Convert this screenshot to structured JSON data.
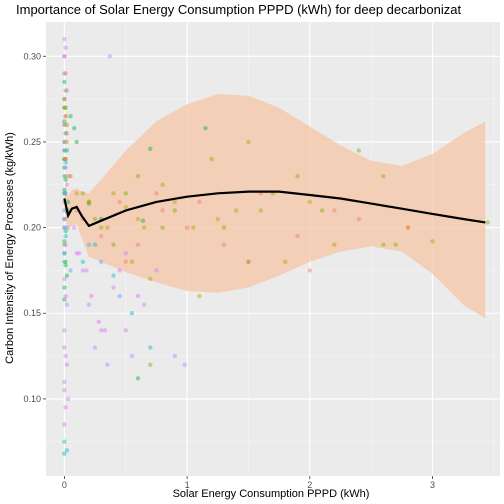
{
  "chart_data": {
    "type": "scatter",
    "title": "Importance of  Solar Energy Consumption PPPD (kWh)  for deep decarbonizat",
    "xlabel": "Solar Energy Consumption PPPD (kWh)",
    "ylabel": "Carbon Intensity of Energy Processes (kg/kWh)",
    "xlim": [
      -0.15,
      3.55
    ],
    "ylim": [
      0.055,
      0.32
    ],
    "x_ticks": [
      0,
      1,
      2,
      3
    ],
    "x_tick_labels": [
      "0",
      "1",
      "2",
      "3"
    ],
    "y_ticks": [
      0.1,
      0.15,
      0.2,
      0.25,
      0.3
    ],
    "y_tick_labels": [
      "0.10",
      "0.15",
      "0.20",
      "0.25",
      "0.30"
    ],
    "grid": true,
    "legend": "none",
    "colors": {
      "panel": "#ebebeb",
      "grid_major": "#ffffff",
      "ribbon": "#f4c6a4",
      "smooth_line": "#000000",
      "points": [
        "#f8766d",
        "#7cae00",
        "#00bfc4",
        "#c77cff",
        "#00ba38",
        "#619cff",
        "#e76bf3",
        "#b79f00"
      ]
    },
    "smooth_line": {
      "x": [
        0.0,
        0.03,
        0.06,
        0.1,
        0.14,
        0.2,
        0.3,
        0.5,
        0.75,
        1.0,
        1.25,
        1.5,
        1.75,
        2.0,
        2.25,
        2.5,
        2.75,
        3.0,
        3.25,
        3.43
      ],
      "y": [
        0.217,
        0.207,
        0.211,
        0.212,
        0.207,
        0.201,
        0.204,
        0.21,
        0.215,
        0.218,
        0.22,
        0.221,
        0.221,
        0.219,
        0.217,
        0.214,
        0.211,
        0.208,
        0.205,
        0.203
      ]
    },
    "ribbon": {
      "x": [
        0.0,
        0.03,
        0.06,
        0.1,
        0.14,
        0.2,
        0.3,
        0.5,
        0.75,
        1.0,
        1.25,
        1.5,
        1.75,
        2.0,
        2.25,
        2.5,
        2.75,
        3.0,
        3.25,
        3.43
      ],
      "upper": [
        0.224,
        0.218,
        0.222,
        0.223,
        0.221,
        0.22,
        0.228,
        0.245,
        0.262,
        0.272,
        0.278,
        0.277,
        0.27,
        0.259,
        0.248,
        0.239,
        0.236,
        0.243,
        0.255,
        0.262
      ],
      "lower": [
        0.21,
        0.198,
        0.201,
        0.202,
        0.194,
        0.183,
        0.18,
        0.174,
        0.168,
        0.163,
        0.162,
        0.165,
        0.172,
        0.18,
        0.186,
        0.189,
        0.186,
        0.173,
        0.155,
        0.147
      ]
    },
    "series": [
      {
        "color": "#00ba38",
        "x": [
          0.0,
          0.0,
          0.01,
          0.0,
          0.01,
          0.0,
          0.02,
          0.0,
          0.0,
          0.01,
          0.0,
          0.03,
          0.0,
          0.01,
          0.0,
          0.0,
          0.01,
          0.02,
          0.0,
          0.0,
          0.05,
          0.08,
          0.1,
          0.2,
          0.6,
          0.7,
          1.15,
          0.64
        ],
        "y": [
          0.285,
          0.275,
          0.27,
          0.262,
          0.255,
          0.25,
          0.245,
          0.24,
          0.235,
          0.228,
          0.222,
          0.215,
          0.205,
          0.198,
          0.192,
          0.185,
          0.178,
          0.172,
          0.165,
          0.158,
          0.265,
          0.258,
          0.25,
          0.214,
          0.112,
          0.246,
          0.258,
          0.204
        ]
      },
      {
        "color": "#7cae00",
        "x": [
          0.0,
          0.01,
          0.0,
          0.02,
          0.0,
          0.01,
          0.0,
          0.03,
          0.0,
          0.01,
          0.15,
          0.2,
          0.25,
          0.3,
          0.4,
          0.5,
          0.6,
          0.7,
          0.8,
          0.9,
          1.2,
          1.3,
          1.5,
          1.7,
          1.9,
          2.1,
          2.4,
          2.6,
          2.7,
          3.45
        ],
        "y": [
          0.29,
          0.28,
          0.27,
          0.26,
          0.24,
          0.23,
          0.22,
          0.21,
          0.19,
          0.18,
          0.22,
          0.215,
          0.205,
          0.2,
          0.19,
          0.22,
          0.23,
          0.12,
          0.2,
          0.21,
          0.24,
          0.2,
          0.18,
          0.22,
          0.23,
          0.21,
          0.245,
          0.19,
          0.19,
          0.203
        ]
      },
      {
        "color": "#b79f00",
        "x": [
          0.0,
          0.01,
          0.0,
          0.02,
          0.01,
          0.05,
          0.1,
          0.2,
          0.3,
          0.35,
          0.4,
          0.5,
          0.55,
          0.6,
          0.65,
          0.7,
          0.8,
          0.9,
          1.05,
          1.1,
          1.25,
          1.4,
          1.5,
          1.6,
          1.8,
          2.0,
          2.2,
          2.6,
          2.8,
          3.0
        ],
        "y": [
          0.27,
          0.265,
          0.26,
          0.25,
          0.24,
          0.23,
          0.22,
          0.215,
          0.205,
          0.2,
          0.22,
          0.212,
          0.18,
          0.205,
          0.2,
          0.17,
          0.225,
          0.215,
          0.2,
          0.16,
          0.205,
          0.21,
          0.25,
          0.21,
          0.18,
          0.215,
          0.19,
          0.23,
          0.2,
          0.192
        ]
      },
      {
        "color": "#f8766d",
        "x": [
          0.0,
          0.01,
          0.02,
          0.0,
          0.01,
          0.04,
          0.1,
          0.15,
          0.3,
          0.45,
          0.5,
          0.6,
          0.75,
          0.8,
          1.0,
          1.1,
          1.3,
          1.5,
          1.6,
          1.9,
          2.0,
          2.2,
          2.4,
          2.8
        ],
        "y": [
          0.275,
          0.265,
          0.255,
          0.245,
          0.24,
          0.23,
          0.21,
          0.205,
          0.195,
          0.215,
          0.18,
          0.19,
          0.22,
          0.21,
          0.2,
          0.215,
          0.19,
          0.18,
          0.22,
          0.195,
          0.175,
          0.21,
          0.205,
          0.2
        ]
      },
      {
        "color": "#00bfc4",
        "x": [
          0.0,
          0.01,
          0.0,
          0.02,
          0.0,
          0.01,
          0.0,
          0.0,
          0.02,
          0.0,
          0.15,
          0.25,
          0.3,
          0.4,
          0.55,
          0.7
        ],
        "y": [
          0.245,
          0.238,
          0.22,
          0.21,
          0.2,
          0.195,
          0.18,
          0.075,
          0.07,
          0.068,
          0.18,
          0.19,
          0.205,
          0.172,
          0.15,
          0.13
        ]
      },
      {
        "color": "#619cff",
        "x": [
          0.0,
          0.01,
          0.0,
          0.02,
          0.0,
          0.05,
          0.2,
          0.3,
          0.45
        ],
        "y": [
          0.23,
          0.22,
          0.21,
          0.2,
          0.185,
          0.175,
          0.19,
          0.18,
          0.16
        ]
      },
      {
        "color": "#c77cff",
        "x": [
          0.0,
          0.01,
          0.0,
          0.02,
          0.0,
          0.01,
          0.0,
          0.0,
          0.01,
          0.0,
          0.02,
          0.0,
          0.01,
          0.0,
          0.03,
          0.1,
          0.15,
          0.2,
          0.25,
          0.3,
          0.35,
          0.37,
          0.4,
          0.5,
          0.55,
          0.65,
          0.75,
          0.9,
          0.98
        ],
        "y": [
          0.31,
          0.305,
          0.3,
          0.28,
          0.26,
          0.235,
          0.215,
          0.2,
          0.19,
          0.17,
          0.155,
          0.14,
          0.125,
          0.11,
          0.1,
          0.185,
          0.175,
          0.155,
          0.13,
          0.14,
          0.12,
          0.3,
          0.165,
          0.185,
          0.125,
          0.155,
          0.175,
          0.125,
          0.12
        ]
      },
      {
        "color": "#e76bf3",
        "x": [
          0.0,
          0.01,
          0.0,
          0.02,
          0.0,
          0.01,
          0.0,
          0.02,
          0.0,
          0.01,
          0.0,
          0.08,
          0.12,
          0.18,
          0.22,
          0.28,
          0.33,
          0.45,
          0.5,
          0.6
        ],
        "y": [
          0.3,
          0.29,
          0.25,
          0.225,
          0.205,
          0.16,
          0.13,
          0.12,
          0.105,
          0.095,
          0.085,
          0.2,
          0.185,
          0.175,
          0.16,
          0.145,
          0.14,
          0.175,
          0.14,
          0.16
        ]
      }
    ]
  }
}
